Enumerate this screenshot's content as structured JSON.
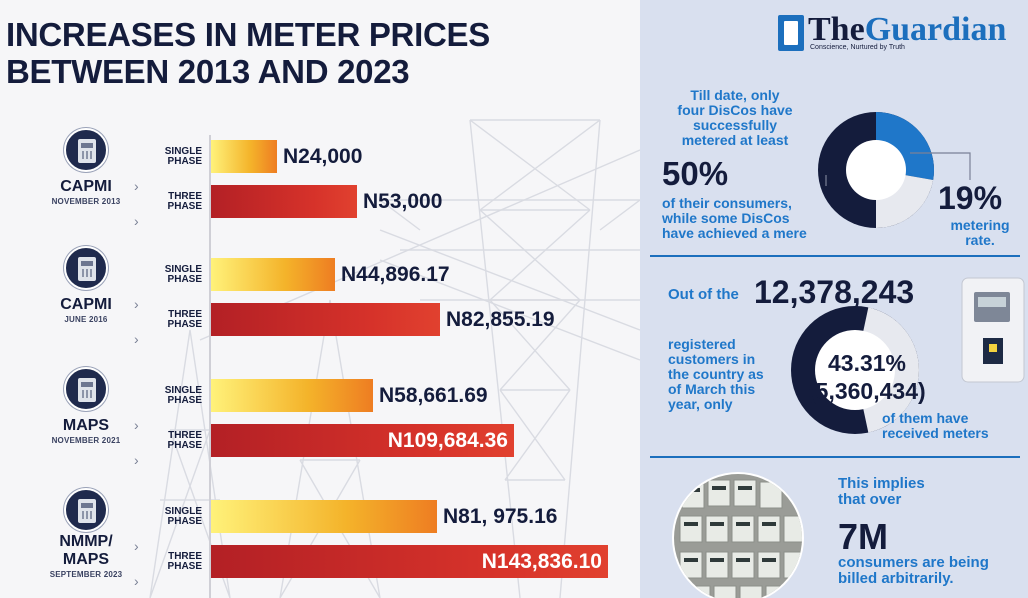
{
  "title_lines": [
    "INCREASES IN METER PRICES",
    "BETWEEN 2013 AND 2023"
  ],
  "chart_data": {
    "type": "bar",
    "orientation": "horizontal",
    "title": "INCREASES IN METER PRICES BETWEEN 2013 AND 2023",
    "groups": [
      {
        "name": "CAPMI",
        "date": "NOVEMBER 2013",
        "bars": [
          {
            "phase": [
              "SINGLE",
              "PHASE"
            ],
            "value": 24000,
            "label": "N24,000",
            "kind": "single"
          },
          {
            "phase": [
              "THREE",
              "PHASE"
            ],
            "value": 53000,
            "label": "N53,000",
            "kind": "three"
          }
        ]
      },
      {
        "name": "CAPMI",
        "date": "JUNE 2016",
        "bars": [
          {
            "phase": [
              "SINGLE",
              "PHASE"
            ],
            "value": 44896.17,
            "label": "N44,896.17",
            "kind": "single"
          },
          {
            "phase": [
              "THREE",
              "PHASE"
            ],
            "value": 82855.19,
            "label": "N82,855.19",
            "kind": "three"
          }
        ]
      },
      {
        "name": "MAPS",
        "date": "NOVEMBER 2021",
        "bars": [
          {
            "phase": [
              "SINGLE",
              "PHASE"
            ],
            "value": 58661.69,
            "label": "N58,661.69",
            "kind": "single"
          },
          {
            "phase": [
              "THREE",
              "PHASE"
            ],
            "value": 109684.36,
            "label": "N109,684.36",
            "kind": "three"
          }
        ]
      },
      {
        "name": "NMMP/\nMAPS",
        "date": "SEPTEMBER 2023",
        "bars": [
          {
            "phase": [
              "SINGLE",
              "PHASE"
            ],
            "value": 81975.16,
            "label": "N81, 975.16",
            "kind": "single"
          },
          {
            "phase": [
              "THREE",
              "PHASE"
            ],
            "value": 143836.1,
            "label": "N143,836.10",
            "kind": "three"
          }
        ]
      }
    ],
    "xlim": [
      0,
      143836.1
    ],
    "colors": {
      "single_start": "#fff27a",
      "single_end": "#ee7d22",
      "three_start": "#b32025",
      "three_end": "#e1412f"
    }
  },
  "brand": {
    "name_the": "The",
    "name_guardian": "Guardian",
    "tagline": "Conscience, Nurtured by Truth",
    "color": "#1c6fbd"
  },
  "panel1": {
    "lines": [
      "Till date, only",
      "four DisCos have",
      "successfully",
      "metered at least"
    ],
    "big": "50%",
    "lines2": [
      "of their consumers,",
      "while some DisCos",
      "have achieved a mere"
    ],
    "donut_fraction": 0.19,
    "stat": "19%",
    "stat_label": [
      "metering",
      "rate."
    ]
  },
  "panel2": {
    "prefix": "Out of the",
    "total": "12,378,243",
    "lines": [
      "registered",
      "customers in",
      "the country as",
      "of March this",
      "year, only"
    ],
    "donut_fraction": 0.4331,
    "percent": "43.31%",
    "count": "(5,360,434)",
    "suffix": [
      "of them have",
      "received meters"
    ]
  },
  "panel3": {
    "lines": [
      "This implies",
      "that over"
    ],
    "big": "7M",
    "lines2": [
      "consumers are being",
      "billed arbitrarily."
    ]
  },
  "colors": {
    "navy": "#141c3c",
    "accent_blue": "#1f77c9",
    "panel_bg": "#d9e0ef"
  }
}
